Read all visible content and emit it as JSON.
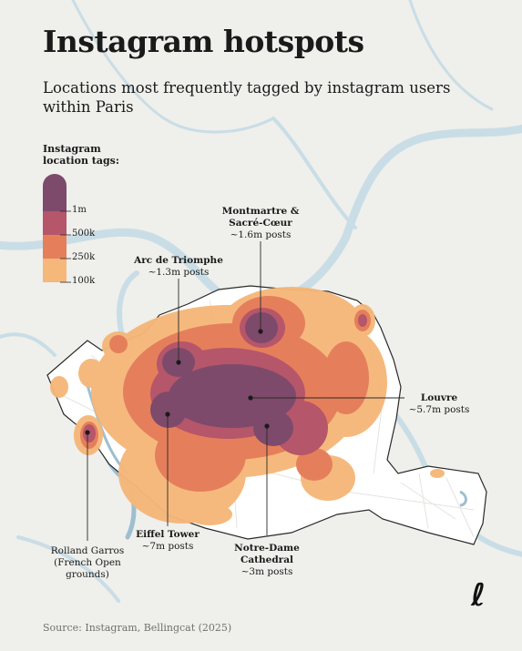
{
  "title": "Instagram hotspots",
  "subtitle": "Locations most frequently tagged by instagram users within Paris",
  "legend": {
    "title_line1": "Instagram",
    "title_line2": "location tags:",
    "bins": [
      {
        "label": "1m",
        "color": "#7d4a6b"
      },
      {
        "label": "500k",
        "color": "#b5566a"
      },
      {
        "label": "250k",
        "color": "#e57f5b"
      },
      {
        "label": "100k",
        "color": "#f5b77a"
      }
    ]
  },
  "callouts": [
    {
      "name": "Montmartre &",
      "name2": "Sacré-Cœur",
      "value": "~1.6m posts"
    },
    {
      "name": "Arc de Triomphe",
      "value": "~1.3m posts"
    },
    {
      "name": "Louvre",
      "value": "~5.7m posts"
    },
    {
      "name": "Eiffel Tower",
      "value": "~7m posts"
    },
    {
      "name": "Notre-Dame",
      "name2": "Cathedral",
      "value": "~3m posts"
    },
    {
      "name": "Rolland Garros",
      "name2": "(French Open",
      "name3": "grounds)"
    }
  ],
  "source": "Source: Instagram, Bellingcat (2025)",
  "brand_mark": "ℓ",
  "colors": {
    "background": "#efefec",
    "river": "#c9dde6",
    "city": "#ffffff",
    "streets": "#e3e3e0"
  }
}
